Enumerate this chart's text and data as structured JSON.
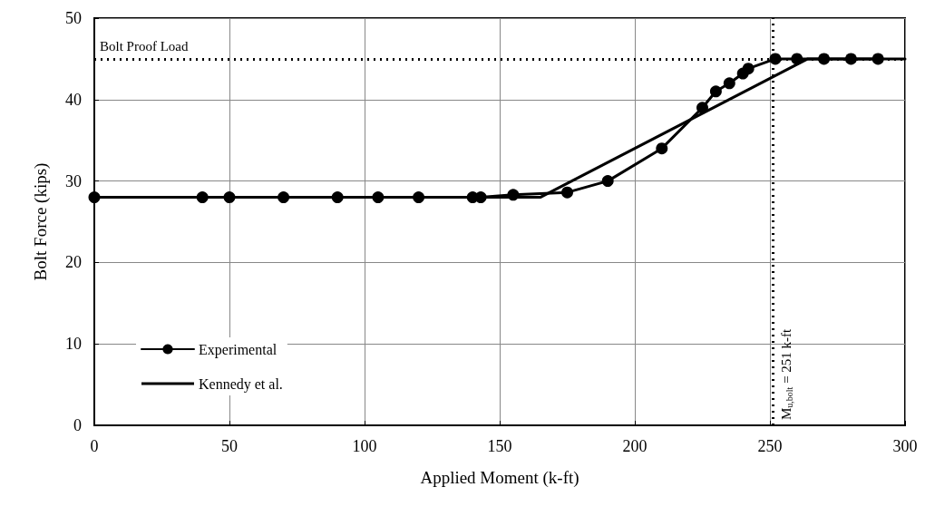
{
  "chart_data": {
    "type": "line",
    "xlabel": "Applied Moment (k-ft)",
    "ylabel": "Bolt Force (kips)",
    "xlim": [
      0,
      300
    ],
    "xticks": [
      0,
      50,
      100,
      150,
      200,
      250,
      300
    ],
    "ylim": [
      0,
      50
    ],
    "yticks": [
      0,
      10,
      20,
      30,
      40,
      50
    ],
    "grid": true,
    "legend": "bottom left",
    "series": [
      {
        "name": "Experimental",
        "color": "#000000",
        "marker": "circle",
        "x": [
          0,
          40,
          50,
          70,
          90,
          105,
          120,
          140,
          143,
          155,
          175,
          190,
          210,
          225,
          230,
          235,
          240,
          242,
          252,
          260,
          270,
          280,
          290
        ],
        "values": [
          28,
          28,
          28,
          28,
          28,
          28,
          28,
          28,
          28,
          28.3,
          28.6,
          30,
          34,
          39,
          41,
          42,
          43.2,
          43.8,
          45,
          45,
          45,
          45,
          45
        ]
      },
      {
        "name": "Kennedy et al.",
        "color": "#000000",
        "marker": "none",
        "x": [
          0,
          165,
          264,
          300
        ],
        "values": [
          28,
          28,
          45,
          45
        ]
      }
    ],
    "ref_lines": [
      {
        "axis": "y",
        "value": 45,
        "label": "Bolt Proof Load",
        "color": "#000000",
        "line_style": "dotted"
      },
      {
        "axis": "x",
        "value": 251,
        "label": "M$_{u,bolt}$ = 251 k-ft",
        "color": "#000000",
        "line_style": "dotted"
      }
    ]
  }
}
